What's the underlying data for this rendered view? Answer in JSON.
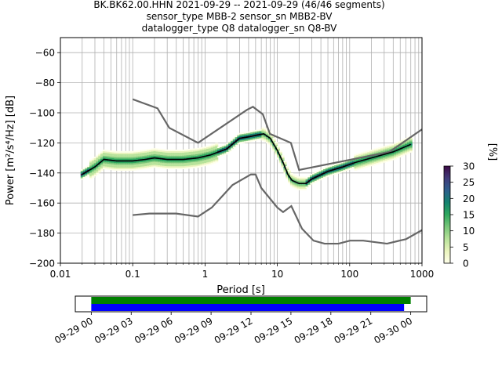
{
  "title_lines": [
    "BK.BK62.00.HHN   2021-09-29 -- 2021-09-29  (46/46 segments)",
    "sensor_type MBB-2 sensor_sn MBB2-BV",
    "datalogger_type Q8 datalogger_sn Q8-BV"
  ],
  "chart_data": [
    {
      "type": "heatmap",
      "description_role": "PPSD",
      "xlabel": "Period [s]",
      "ylabel": "Power [m²/s⁴/Hz] [dB]",
      "xscale": "log",
      "xlim": [
        0.01,
        1000
      ],
      "ylim": [
        -200,
        -50
      ],
      "xticks": [
        0.01,
        0.1,
        1,
        10,
        100,
        1000
      ],
      "xtick_labels": [
        "0.01",
        "0.1",
        "1",
        "10",
        "100",
        "1000"
      ],
      "yticks": [
        -200,
        -180,
        -160,
        -140,
        -120,
        -100,
        -80,
        -60
      ],
      "ytick_labels": [
        "−200",
        "−180",
        "−160",
        "−140",
        "−120",
        "−100",
        "−80",
        "−60"
      ],
      "grid": true,
      "mean_curve": [
        [
          0.02,
          -141
        ],
        [
          0.03,
          -136
        ],
        [
          0.04,
          -131
        ],
        [
          0.06,
          -132
        ],
        [
          0.1,
          -132
        ],
        [
          0.15,
          -131
        ],
        [
          0.2,
          -130
        ],
        [
          0.3,
          -131
        ],
        [
          0.5,
          -131
        ],
        [
          0.8,
          -130
        ],
        [
          1.2,
          -128
        ],
        [
          2,
          -124
        ],
        [
          3,
          -117
        ],
        [
          4,
          -116
        ],
        [
          5,
          -115
        ],
        [
          6.5,
          -114
        ],
        [
          8,
          -117
        ],
        [
          10,
          -125
        ],
        [
          12,
          -133
        ],
        [
          14,
          -141
        ],
        [
          16,
          -145
        ],
        [
          20,
          -147
        ],
        [
          25,
          -147
        ],
        [
          30,
          -144
        ],
        [
          50,
          -139
        ],
        [
          80,
          -136
        ],
        [
          120,
          -133
        ],
        [
          200,
          -130
        ],
        [
          400,
          -126
        ],
        [
          700,
          -121
        ]
      ],
      "nhnm": [
        [
          0.1,
          -91
        ],
        [
          0.22,
          -97
        ],
        [
          0.32,
          -110
        ],
        [
          0.8,
          -120
        ],
        [
          3.8,
          -98
        ],
        [
          4.6,
          -96
        ],
        [
          6.3,
          -101
        ],
        [
          7.9,
          -114
        ],
        [
          15.4,
          -120
        ],
        [
          20,
          -138
        ],
        [
          354,
          -126
        ],
        [
          1000,
          -111
        ]
      ],
      "nlnm": [
        [
          0.1,
          -168
        ],
        [
          0.17,
          -167
        ],
        [
          0.4,
          -167
        ],
        [
          0.8,
          -169
        ],
        [
          1.24,
          -163
        ],
        [
          2.4,
          -148
        ],
        [
          4.3,
          -141
        ],
        [
          5,
          -141
        ],
        [
          6,
          -150
        ],
        [
          10,
          -163
        ],
        [
          12,
          -166
        ],
        [
          15.6,
          -162
        ],
        [
          21.9,
          -177
        ],
        [
          31.6,
          -185
        ],
        [
          45,
          -187
        ],
        [
          70,
          -187
        ],
        [
          101,
          -185
        ],
        [
          154,
          -185
        ],
        [
          328,
          -187
        ],
        [
          600,
          -184
        ],
        [
          1000,
          -178
        ]
      ],
      "colorbar": {
        "label": "[%]",
        "min": 0,
        "max": 30,
        "ticks": [
          0,
          5,
          10,
          15,
          20,
          25,
          30
        ],
        "colormap": [
          "#ffffea",
          "#eaf4bd",
          "#b7e29a",
          "#78c679",
          "#2fa85e",
          "#13836f",
          "#2d5f8c",
          "#403b7a",
          "#3d0a45"
        ]
      }
    },
    {
      "type": "timeline",
      "description_role": "data coverage",
      "xtick_labels": [
        "09-29 00",
        "09-29 03",
        "09-29 06",
        "09-29 09",
        "09-29 12",
        "09-29 15",
        "09-29 18",
        "09-29 21",
        "09-30 00"
      ],
      "xticks_hours": [
        0,
        3,
        6,
        9,
        12,
        15,
        18,
        21,
        24
      ],
      "xlim_hours": [
        -1.2,
        25.2
      ],
      "bars": [
        {
          "color": "#008000",
          "start_hour": 0,
          "end_hour": 24.0,
          "row": "top"
        },
        {
          "color": "#0000ff",
          "start_hour": 0,
          "end_hour": 23.5,
          "row": "bottom"
        }
      ]
    }
  ]
}
